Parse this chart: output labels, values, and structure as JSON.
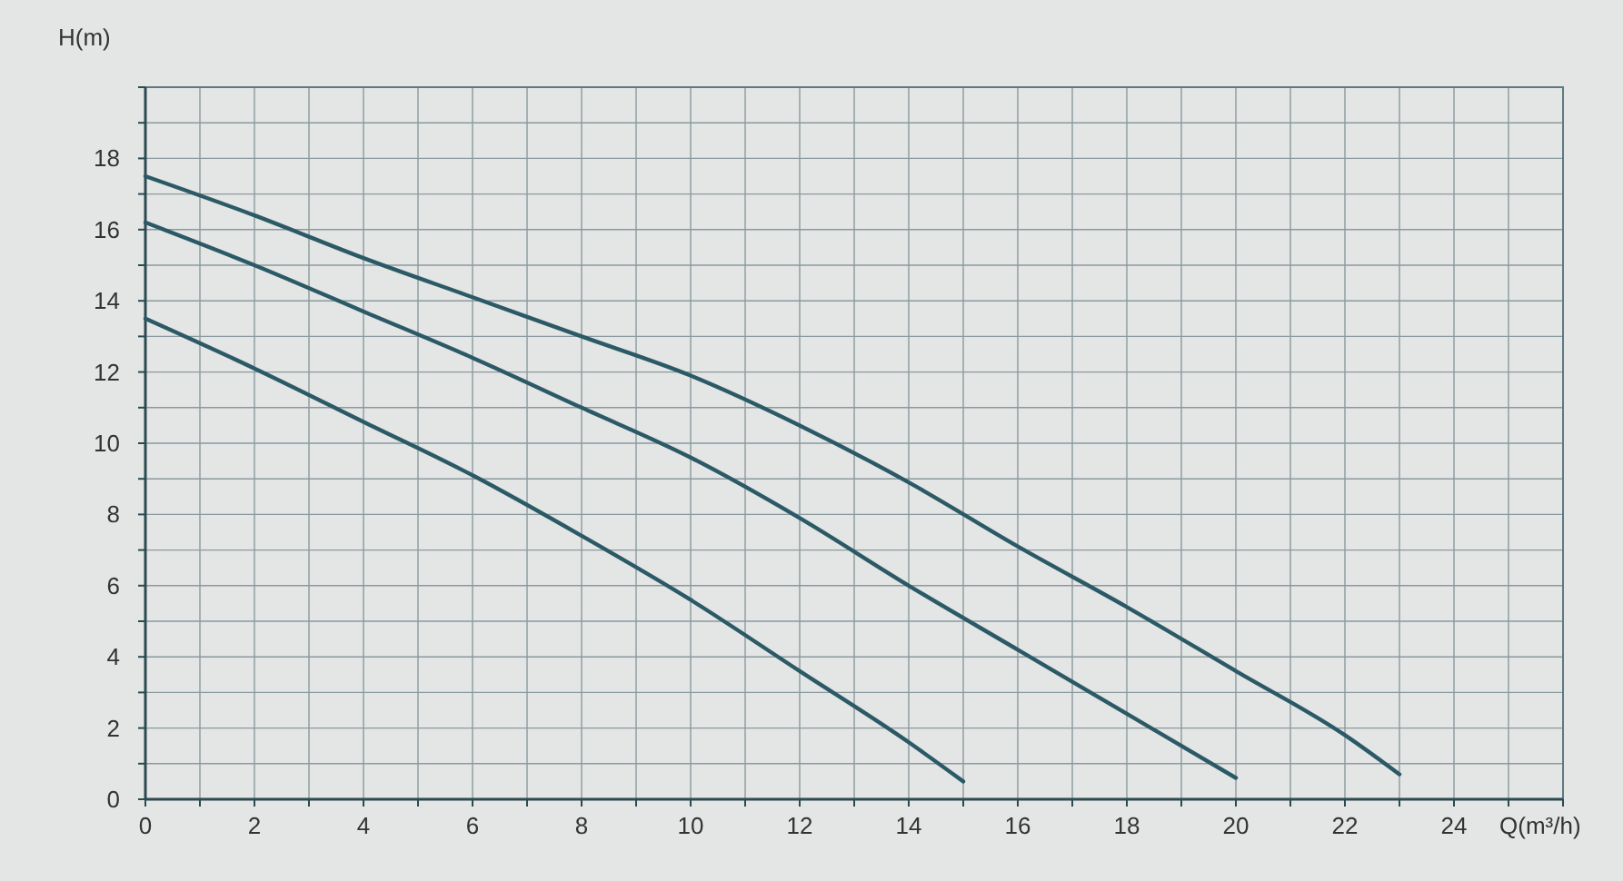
{
  "chart_data": {
    "type": "line",
    "xlabel": "Q(m³/h)",
    "ylabel": "H(m)",
    "xlim": [
      0,
      26
    ],
    "ylim": [
      0,
      20
    ],
    "xticks": [
      0,
      {
        "value": 1,
        "label": null
      },
      2,
      {
        "value": 3,
        "label": null
      },
      4,
      {
        "value": 5,
        "label": null
      },
      6,
      {
        "value": 7,
        "label": null
      },
      8,
      {
        "value": 9,
        "label": null
      },
      10,
      {
        "value": 11,
        "label": null
      },
      12,
      {
        "value": 13,
        "label": null
      },
      14,
      {
        "value": 15,
        "label": null
      },
      16,
      {
        "value": 17,
        "label": null
      },
      18,
      {
        "value": 19,
        "label": null
      },
      20,
      {
        "value": 21,
        "label": null
      },
      22,
      {
        "value": 23,
        "label": null
      },
      24,
      {
        "value": 25,
        "label": null
      },
      {
        "value": 26,
        "label": null
      }
    ],
    "yticks": [
      0,
      {
        "value": 1,
        "label": null
      },
      2,
      {
        "value": 3,
        "label": null
      },
      4,
      {
        "value": 5,
        "label": null
      },
      6,
      {
        "value": 7,
        "label": null
      },
      8,
      {
        "value": 9,
        "label": null
      },
      10,
      {
        "value": 11,
        "label": null
      },
      12,
      {
        "value": 13,
        "label": null
      },
      14,
      {
        "value": 15,
        "label": null
      },
      16,
      {
        "value": 17,
        "label": null
      },
      18,
      {
        "value": 19,
        "label": null
      },
      {
        "value": 20,
        "label": null
      }
    ],
    "grid": true,
    "marker": "none",
    "line_style": "solid",
    "series": [
      {
        "color": "#2b5a66",
        "x": [
          0,
          2,
          4,
          6,
          8,
          10,
          12,
          14,
          16,
          18,
          20,
          22,
          23
        ],
        "values": [
          17.5,
          16.4,
          15.2,
          14.1,
          13.0,
          11.9,
          10.5,
          8.9,
          7.1,
          5.4,
          3.6,
          1.8,
          0.7
        ]
      },
      {
        "color": "#2b5a66",
        "x": [
          0,
          2,
          4,
          6,
          8,
          10,
          12,
          14,
          16,
          18,
          20
        ],
        "values": [
          16.2,
          15.0,
          13.7,
          12.4,
          11.0,
          9.6,
          7.9,
          6.0,
          4.2,
          2.4,
          0.6
        ]
      },
      {
        "color": "#2b5a66",
        "x": [
          0,
          2,
          4,
          6,
          8,
          10,
          12,
          14,
          15
        ],
        "values": [
          13.5,
          12.1,
          10.6,
          9.1,
          7.4,
          5.6,
          3.6,
          1.6,
          0.5
        ]
      }
    ]
  }
}
